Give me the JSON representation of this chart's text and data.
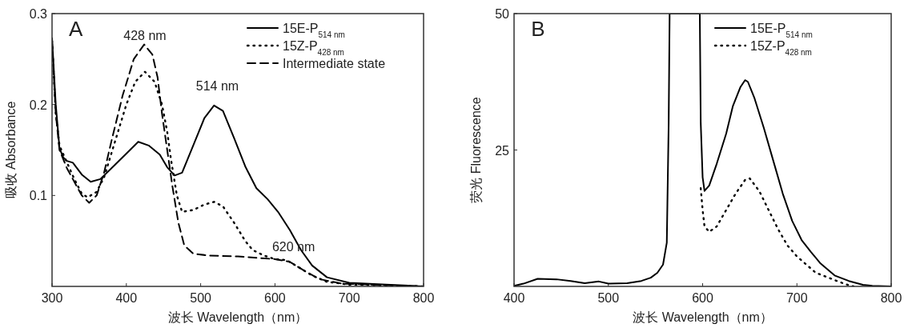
{
  "chart_data": [
    {
      "type": "line",
      "xlabel": "波长 Wavelength（nm）",
      "ylabel": "吸收 Absorbance",
      "xlim": [
        300,
        800
      ],
      "ylim": [
        0,
        0.3
      ],
      "xticks": [
        300,
        400,
        500,
        600,
        700,
        800
      ],
      "yticks": [
        0.1,
        0.2,
        0.3
      ],
      "legend": "top right",
      "grid": false,
      "annotations": [
        "A",
        "428 nm",
        "514 nm",
        "620 nm"
      ],
      "series": [
        {
          "name": "15E-P$_{514 nm}$",
          "color": "#000000",
          "line_style": "solid",
          "x": [
            300,
            305,
            310,
            315,
            320,
            328,
            340,
            352,
            365,
            380,
            400,
            416,
            430,
            445,
            455,
            465,
            475,
            490,
            505,
            518,
            530,
            545,
            560,
            575,
            590,
            605,
            620,
            635,
            650,
            670,
            700,
            750,
            800
          ],
          "values": [
            0.273,
            0.2,
            0.152,
            0.142,
            0.138,
            0.136,
            0.123,
            0.115,
            0.118,
            0.13,
            0.146,
            0.159,
            0.155,
            0.145,
            0.131,
            0.122,
            0.125,
            0.155,
            0.185,
            0.199,
            0.193,
            0.163,
            0.132,
            0.108,
            0.096,
            0.081,
            0.062,
            0.04,
            0.023,
            0.01,
            0.004,
            0.002,
            0
          ]
        },
        {
          "name": "15Z-P$_{428 nm}$",
          "color": "#000000",
          "line_style": "dotted",
          "x": [
            300,
            305,
            310,
            318,
            330,
            340,
            348,
            360,
            370,
            385,
            400,
            412,
            425,
            438,
            448,
            455,
            460,
            468,
            475,
            490,
            505,
            518,
            530,
            545,
            560,
            570,
            585,
            600,
            615,
            630,
            650,
            670,
            700,
            800
          ],
          "values": [
            0.27,
            0.19,
            0.155,
            0.14,
            0.118,
            0.102,
            0.098,
            0.104,
            0.12,
            0.16,
            0.2,
            0.225,
            0.236,
            0.225,
            0.2,
            0.17,
            0.14,
            0.1,
            0.082,
            0.084,
            0.09,
            0.093,
            0.088,
            0.07,
            0.05,
            0.04,
            0.034,
            0.03,
            0.029,
            0.022,
            0.012,
            0.005,
            0.002,
            0
          ]
        },
        {
          "name": "Intermediate state",
          "color": "#000000",
          "line_style": "dashed",
          "x": [
            300,
            305,
            310,
            320,
            330,
            340,
            350,
            360,
            370,
            380,
            395,
            410,
            424,
            435,
            442,
            448,
            455,
            462,
            470,
            478,
            490,
            510,
            550,
            600,
            620,
            640,
            660,
            690,
            800
          ],
          "values": [
            0.27,
            0.19,
            0.15,
            0.13,
            0.115,
            0.1,
            0.092,
            0.1,
            0.125,
            0.16,
            0.21,
            0.25,
            0.266,
            0.255,
            0.23,
            0.19,
            0.15,
            0.11,
            0.07,
            0.045,
            0.036,
            0.034,
            0.033,
            0.03,
            0.027,
            0.017,
            0.008,
            0.003,
            0
          ]
        }
      ]
    },
    {
      "type": "line",
      "xlabel": "波长 Wavelength（nm）",
      "ylabel": "荧光 Fluorescence",
      "xlim": [
        400,
        800
      ],
      "ylim": [
        0,
        50
      ],
      "xticks": [
        400,
        500,
        600,
        700,
        800
      ],
      "yticks": [
        25,
        50
      ],
      "legend": "top right",
      "grid": false,
      "annotations": [
        "B"
      ],
      "series": [
        {
          "name": "15E-P$_{514 nm}$",
          "color": "#000000",
          "line_style": "solid",
          "x": [
            400,
            410,
            425,
            445,
            460,
            475,
            490,
            500,
            520,
            535,
            545,
            552,
            558,
            562,
            564,
            565,
            597,
            598,
            600,
            602,
            607,
            615,
            625,
            632,
            640,
            645,
            648,
            655,
            665,
            675,
            685,
            695,
            705,
            715,
            725,
            740,
            755,
            770,
            780,
            800
          ],
          "values": [
            0.1,
            0.5,
            1.4,
            1.3,
            1.0,
            0.6,
            0.9,
            0.5,
            0.6,
            1.0,
            1.6,
            2.5,
            4.0,
            8,
            30,
            50,
            50,
            30,
            20,
            17.5,
            18.5,
            22.5,
            28,
            33,
            36.5,
            37.8,
            37.5,
            34.5,
            29,
            23,
            17,
            12,
            8.5,
            6.3,
            4.2,
            2.0,
            1.0,
            0.3,
            0.1,
            0
          ]
        },
        {
          "name": "15Z-P$_{428 nm}$",
          "color": "#000000",
          "line_style": "dotted",
          "x": [
            598,
            600,
            602,
            607,
            615,
            625,
            635,
            645,
            650,
            660,
            670,
            680,
            690,
            700,
            710,
            720,
            735,
            750,
            760
          ],
          "values": [
            18,
            14,
            11,
            10,
            11,
            14,
            17,
            19.5,
            19.8,
            17.5,
            14,
            10.5,
            7.5,
            5.5,
            4,
            2.5,
            1.5,
            0.5,
            0
          ]
        }
      ]
    }
  ]
}
